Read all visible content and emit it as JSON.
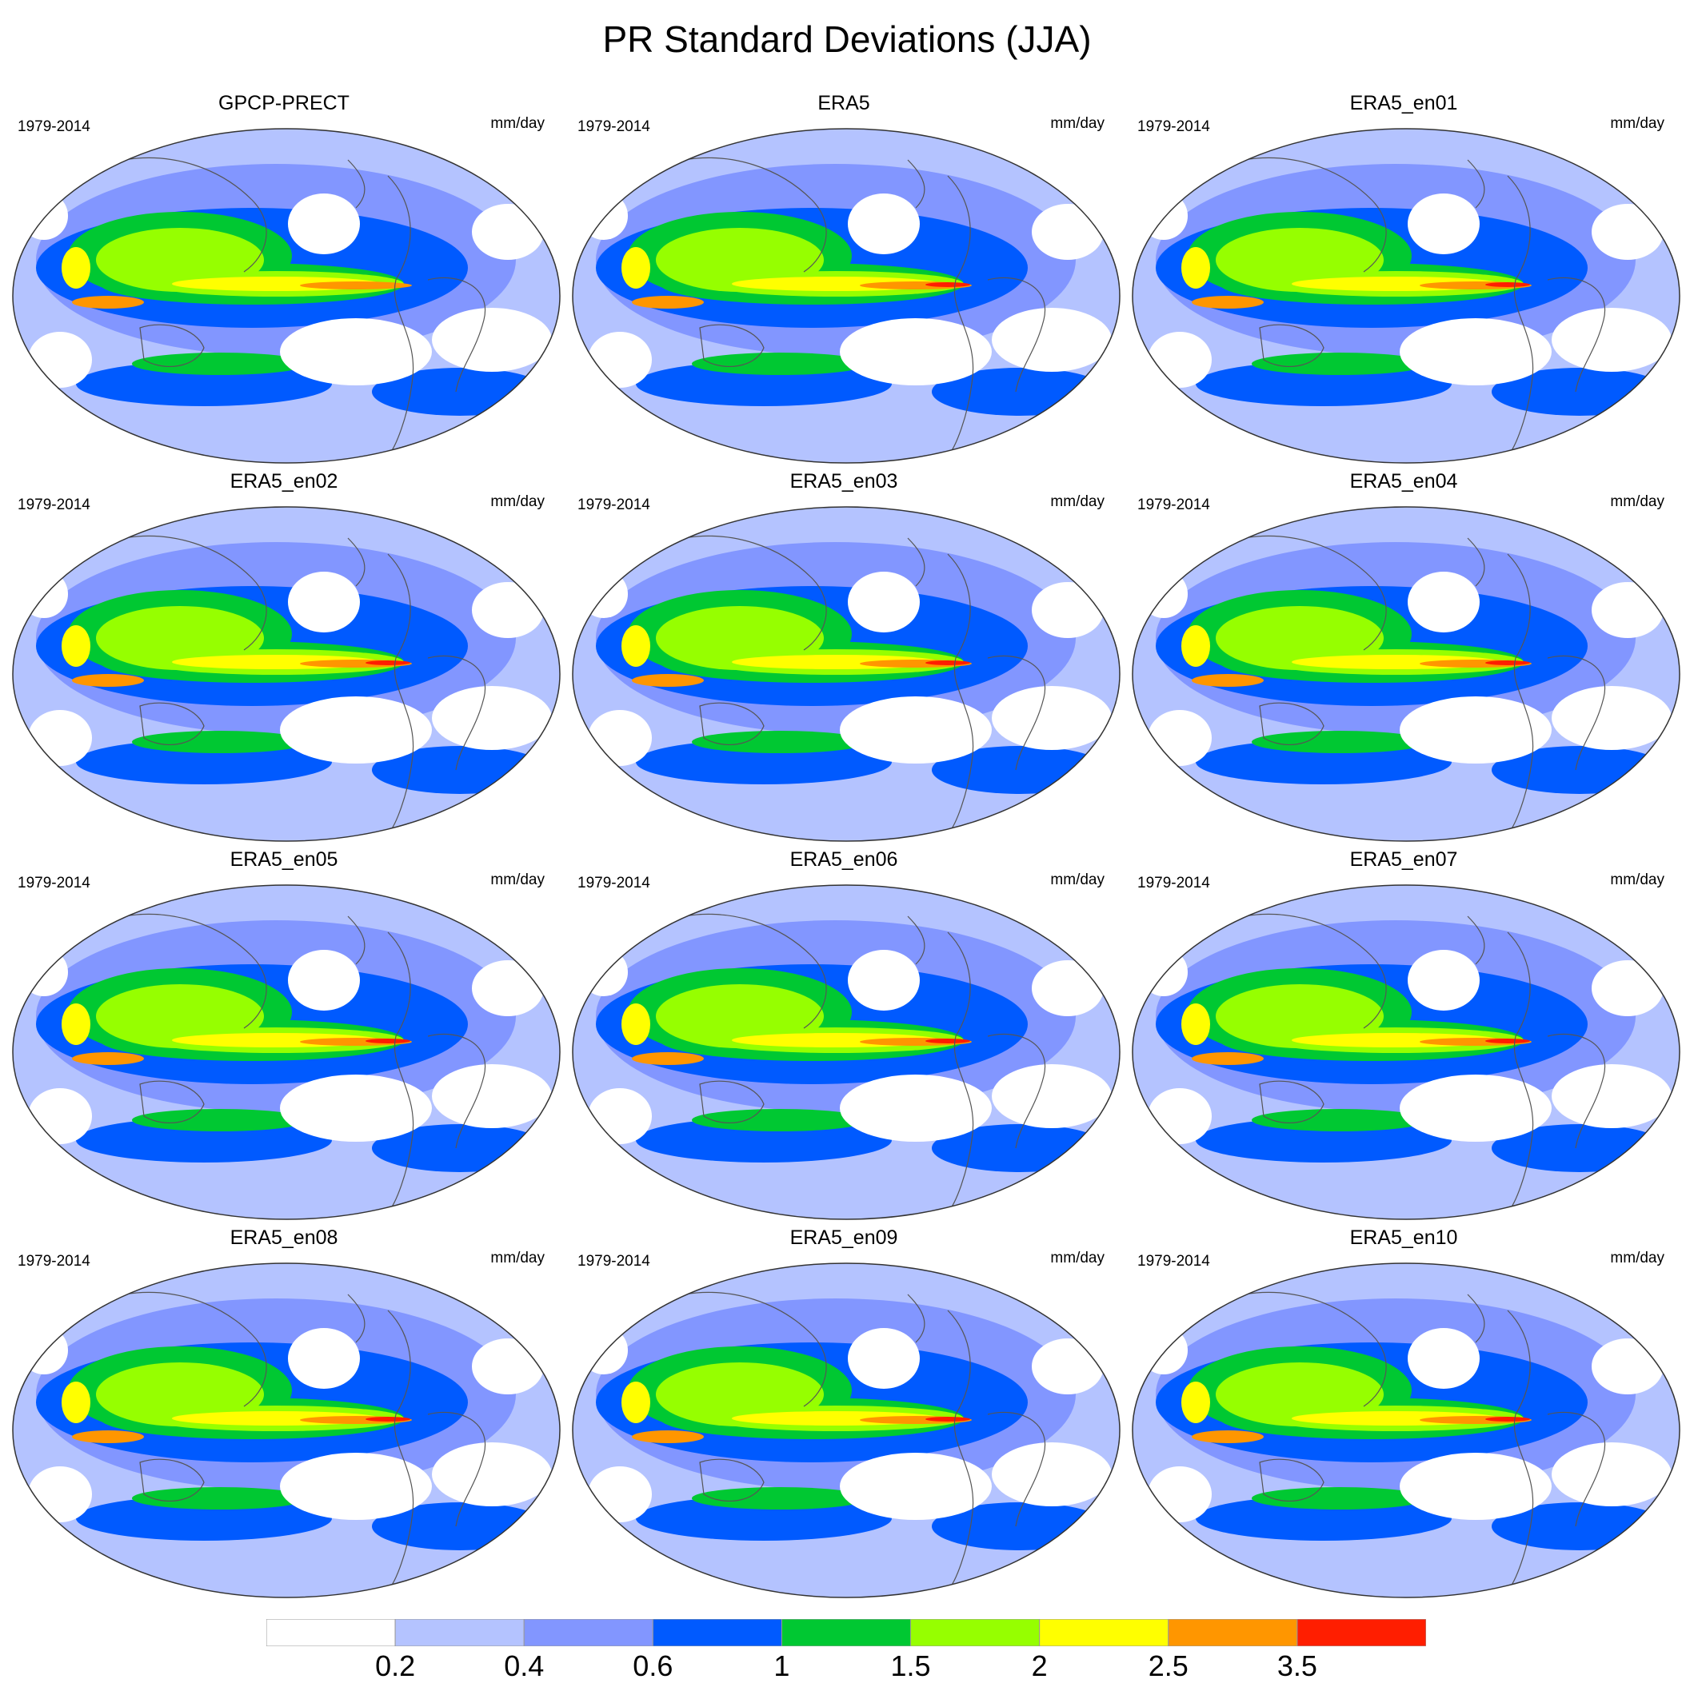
{
  "title": "PR Standard Deviations (JJA)",
  "panels": [
    {
      "title": "GPCP-PRECT",
      "period": "1979-2014",
      "units": "mm/day",
      "variant": 0
    },
    {
      "title": "ERA5",
      "period": "1979-2014",
      "units": "mm/day",
      "variant": 1
    },
    {
      "title": "ERA5_en01",
      "period": "1979-2014",
      "units": "mm/day",
      "variant": 1
    },
    {
      "title": "ERA5_en02",
      "period": "1979-2014",
      "units": "mm/day",
      "variant": 1
    },
    {
      "title": "ERA5_en03",
      "period": "1979-2014",
      "units": "mm/day",
      "variant": 1
    },
    {
      "title": "ERA5_en04",
      "period": "1979-2014",
      "units": "mm/day",
      "variant": 1
    },
    {
      "title": "ERA5_en05",
      "period": "1979-2014",
      "units": "mm/day",
      "variant": 1
    },
    {
      "title": "ERA5_en06",
      "period": "1979-2014",
      "units": "mm/day",
      "variant": 1
    },
    {
      "title": "ERA5_en07",
      "period": "1979-2014",
      "units": "mm/day",
      "variant": 1
    },
    {
      "title": "ERA5_en08",
      "period": "1979-2014",
      "units": "mm/day",
      "variant": 1
    },
    {
      "title": "ERA5_en09",
      "period": "1979-2014",
      "units": "mm/day",
      "variant": 1
    },
    {
      "title": "ERA5_en10",
      "period": "1979-2014",
      "units": "mm/day",
      "variant": 1
    }
  ],
  "colorbar": {
    "labels": [
      "0.2",
      "0.4",
      "0.6",
      "1",
      "1.5",
      "2",
      "2.5",
      "3.5"
    ],
    "colors": [
      "#ffffff",
      "#b4c3ff",
      "#8296ff",
      "#005aff",
      "#00c832",
      "#96ff00",
      "#ffff00",
      "#ff9600",
      "#ff1e00"
    ]
  }
}
